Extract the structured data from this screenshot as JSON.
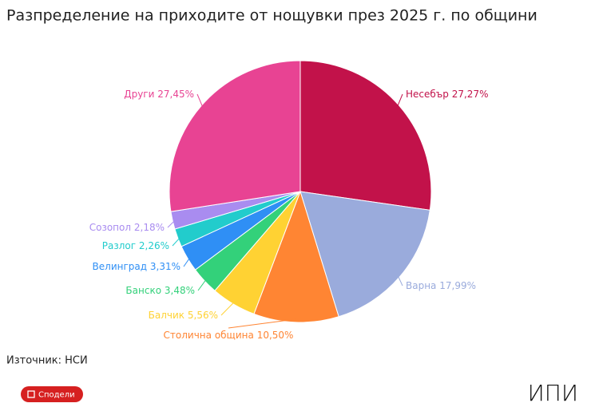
{
  "chart_data": {
    "type": "pie",
    "title": "Разпределение на приходите от нощувки през 2025 г. по общини",
    "categories": [
      "Несебър",
      "Варна",
      "Столична община",
      "Балчик",
      "Банско",
      "Велинград",
      "Разлог",
      "Созопол",
      "Други"
    ],
    "values": [
      27.27,
      17.99,
      10.5,
      5.56,
      3.48,
      3.31,
      2.26,
      2.18,
      27.45
    ],
    "value_labels": [
      "27,27%",
      "17,99%",
      "10,50%",
      "5,56%",
      "3,48%",
      "3,31%",
      "2,26%",
      "2,18%",
      "27,45%"
    ],
    "colors": [
      "#c2124a",
      "#9aabdc",
      "#ff8533",
      "#ffd233",
      "#33d17a",
      "#2f8ff5",
      "#22cccc",
      "#a98cf0",
      "#e84393"
    ]
  },
  "footer": {
    "source": "Източник: НСИ",
    "share": "Сподели",
    "logo": "ИПИ"
  }
}
